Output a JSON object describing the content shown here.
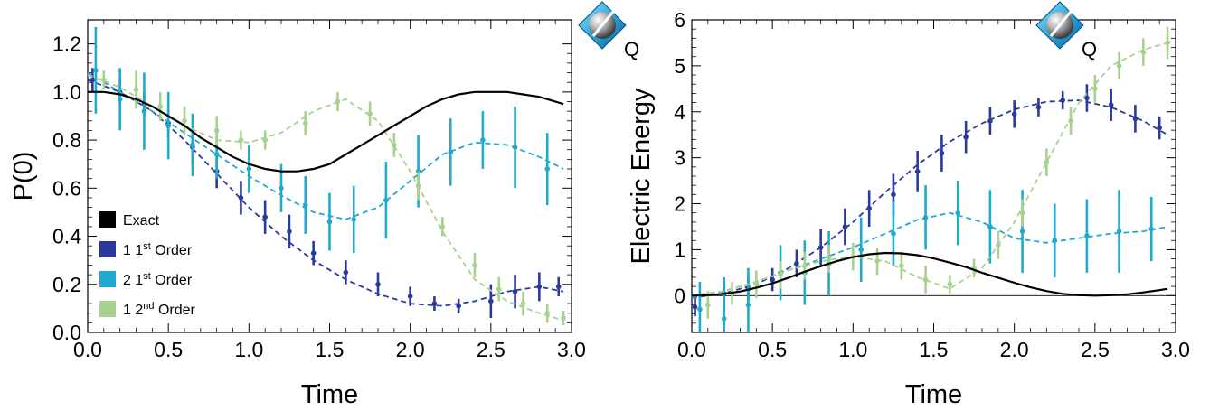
{
  "chart_data": [
    {
      "type": "line",
      "xlabel": "Time",
      "ylabel": "P(0)",
      "xlim": [
        0,
        3.0
      ],
      "ylim": [
        0,
        1.3
      ],
      "xticks": [
        "0.0",
        "0.5",
        "1.0",
        "1.5",
        "2.0",
        "2.5",
        "3.0"
      ],
      "yticks": [
        "0.0",
        "0.2",
        "0.4",
        "0.6",
        "0.8",
        "1.0",
        "1.2"
      ],
      "legend_position": "bottom-left",
      "logo_text": "Q",
      "legend": [
        {
          "label": "Exact",
          "sup": "",
          "suffix": "",
          "color": "#000000"
        },
        {
          "label": "1 1",
          "sup": "st",
          "suffix": " Order",
          "color": "#2a3a9c"
        },
        {
          "label": "2 1",
          "sup": "st",
          "suffix": " Order",
          "color": "#1fa9cf"
        },
        {
          "label": "1 2",
          "sup": "nd",
          "suffix": " Order",
          "color": "#a7d18f"
        }
      ],
      "exact_curve": {
        "color": "#000000",
        "x": [
          0.0,
          0.1,
          0.2,
          0.3,
          0.4,
          0.5,
          0.6,
          0.7,
          0.8,
          0.9,
          1.0,
          1.1,
          1.2,
          1.3,
          1.4,
          1.5,
          1.6,
          1.7,
          1.8,
          1.9,
          2.0,
          2.1,
          2.2,
          2.3,
          2.4,
          2.5,
          2.6,
          2.7,
          2.8,
          2.9,
          2.95
        ],
        "y": [
          1.0,
          1.0,
          0.99,
          0.97,
          0.94,
          0.9,
          0.86,
          0.81,
          0.77,
          0.73,
          0.7,
          0.68,
          0.67,
          0.67,
          0.68,
          0.7,
          0.74,
          0.78,
          0.82,
          0.86,
          0.9,
          0.94,
          0.97,
          0.99,
          1.0,
          1.0,
          1.0,
          0.99,
          0.98,
          0.96,
          0.95
        ]
      },
      "series": [
        {
          "color": "#2a3a9c",
          "fit": {
            "x": [
              0.0,
              0.2,
              0.4,
              0.6,
              0.8,
              1.0,
              1.2,
              1.4,
              1.6,
              1.8,
              2.0,
              2.2,
              2.4,
              2.6,
              2.8,
              2.95
            ],
            "y": [
              1.05,
              1.0,
              0.92,
              0.8,
              0.66,
              0.52,
              0.4,
              0.3,
              0.22,
              0.16,
              0.12,
              0.11,
              0.13,
              0.17,
              0.19,
              0.17
            ]
          },
          "points": {
            "x": [
              0.03,
              0.2,
              0.35,
              0.5,
              0.65,
              0.8,
              0.95,
              1.1,
              1.25,
              1.4,
              1.6,
              1.8,
              2.0,
              2.15,
              2.3,
              2.5,
              2.65,
              2.8,
              2.92
            ],
            "y": [
              1.05,
              1.0,
              0.95,
              0.87,
              0.77,
              0.67,
              0.56,
              0.48,
              0.42,
              0.33,
              0.25,
              0.2,
              0.15,
              0.12,
              0.11,
              0.13,
              0.17,
              0.19,
              0.19
            ],
            "err": [
              0.05,
              0.05,
              0.05,
              0.06,
              0.07,
              0.07,
              0.07,
              0.07,
              0.07,
              0.05,
              0.05,
              0.05,
              0.04,
              0.03,
              0.03,
              0.07,
              0.07,
              0.06,
              0.04
            ]
          }
        },
        {
          "color": "#1fa9cf",
          "fit": {
            "x": [
              0.0,
              0.2,
              0.4,
              0.6,
              0.8,
              1.0,
              1.2,
              1.4,
              1.6,
              1.8,
              2.0,
              2.2,
              2.4,
              2.6,
              2.8,
              2.95
            ],
            "y": [
              1.08,
              1.0,
              0.92,
              0.83,
              0.74,
              0.65,
              0.57,
              0.5,
              0.47,
              0.52,
              0.63,
              0.74,
              0.79,
              0.78,
              0.73,
              0.68
            ]
          },
          "points": {
            "x": [
              0.05,
              0.2,
              0.35,
              0.5,
              0.65,
              0.8,
              1.0,
              1.2,
              1.35,
              1.5,
              1.65,
              1.85,
              2.05,
              2.25,
              2.45,
              2.65,
              2.85
            ],
            "y": [
              1.09,
              0.97,
              0.92,
              0.86,
              0.78,
              0.74,
              0.68,
              0.6,
              0.53,
              0.46,
              0.47,
              0.55,
              0.67,
              0.75,
              0.8,
              0.77,
              0.68
            ],
            "err": [
              0.18,
              0.13,
              0.16,
              0.14,
              0.13,
              0.1,
              0.1,
              0.1,
              0.12,
              0.12,
              0.14,
              0.16,
              0.15,
              0.14,
              0.12,
              0.17,
              0.15
            ]
          }
        },
        {
          "color": "#a7d18f",
          "fit": {
            "x": [
              0.0,
              0.2,
              0.4,
              0.6,
              0.8,
              1.0,
              1.2,
              1.4,
              1.6,
              1.8,
              2.0,
              2.2,
              2.4,
              2.6,
              2.8,
              2.95
            ],
            "y": [
              1.07,
              1.02,
              0.94,
              0.86,
              0.8,
              0.79,
              0.83,
              0.92,
              0.97,
              0.88,
              0.67,
              0.42,
              0.22,
              0.13,
              0.08,
              0.05
            ]
          },
          "points": {
            "x": [
              0.1,
              0.3,
              0.45,
              0.6,
              0.8,
              0.95,
              1.1,
              1.35,
              1.55,
              1.75,
              1.9,
              2.05,
              2.2,
              2.4,
              2.55,
              2.7,
              2.85,
              2.95
            ],
            "y": [
              1.05,
              1.01,
              0.94,
              0.88,
              0.84,
              0.8,
              0.8,
              0.87,
              0.96,
              0.91,
              0.78,
              0.61,
              0.44,
              0.28,
              0.18,
              0.12,
              0.08,
              0.06
            ],
            "err": [
              0.04,
              0.08,
              0.06,
              0.06,
              0.06,
              0.04,
              0.04,
              0.05,
              0.04,
              0.05,
              0.05,
              0.06,
              0.04,
              0.05,
              0.05,
              0.05,
              0.04,
              0.03
            ]
          }
        }
      ]
    },
    {
      "type": "line",
      "xlabel": "Time",
      "ylabel": "Electric Energy",
      "xlim": [
        0,
        3.0
      ],
      "ylim": [
        -0.8,
        6.0
      ],
      "xticks": [
        "0.0",
        "0.5",
        "1.0",
        "1.5",
        "2.0",
        "2.5",
        "3.0"
      ],
      "yticks": [
        "0",
        "1",
        "2",
        "3",
        "4",
        "5",
        "6"
      ],
      "zero_line": true,
      "logo_text": "Q",
      "exact_curve": {
        "color": "#000000",
        "x": [
          0.0,
          0.1,
          0.2,
          0.3,
          0.4,
          0.5,
          0.6,
          0.7,
          0.8,
          0.9,
          1.0,
          1.1,
          1.2,
          1.3,
          1.4,
          1.5,
          1.6,
          1.7,
          1.8,
          1.9,
          2.0,
          2.1,
          2.2,
          2.3,
          2.4,
          2.5,
          2.6,
          2.7,
          2.8,
          2.9,
          2.95
        ],
        "y": [
          0.0,
          0.01,
          0.04,
          0.09,
          0.17,
          0.27,
          0.39,
          0.52,
          0.64,
          0.75,
          0.84,
          0.9,
          0.93,
          0.92,
          0.88,
          0.81,
          0.72,
          0.62,
          0.5,
          0.39,
          0.28,
          0.18,
          0.1,
          0.04,
          0.01,
          0.0,
          0.01,
          0.03,
          0.07,
          0.12,
          0.15
        ]
      },
      "series": [
        {
          "color": "#2a3a9c",
          "fit": {
            "x": [
              0.0,
              0.2,
              0.4,
              0.6,
              0.8,
              1.0,
              1.2,
              1.4,
              1.6,
              1.8,
              2.0,
              2.2,
              2.4,
              2.6,
              2.8,
              2.95
            ],
            "y": [
              -0.05,
              0.05,
              0.25,
              0.6,
              1.05,
              1.6,
              2.25,
              2.85,
              3.35,
              3.75,
              4.05,
              4.22,
              4.25,
              4.1,
              3.8,
              3.5
            ]
          },
          "points": {
            "x": [
              0.02,
              0.2,
              0.35,
              0.5,
              0.65,
              0.8,
              0.95,
              1.1,
              1.25,
              1.4,
              1.55,
              1.7,
              1.85,
              2.0,
              2.15,
              2.3,
              2.45,
              2.6,
              2.75,
              2.9
            ],
            "y": [
              -0.25,
              0.05,
              0.15,
              0.35,
              0.7,
              1.05,
              1.5,
              1.9,
              2.2,
              2.7,
              3.1,
              3.45,
              3.8,
              3.95,
              4.1,
              4.25,
              4.3,
              4.15,
              3.85,
              3.65
            ],
            "err": [
              0.2,
              0.2,
              0.25,
              0.25,
              0.3,
              0.4,
              0.4,
              0.4,
              0.45,
              0.45,
              0.4,
              0.35,
              0.3,
              0.3,
              0.2,
              0.2,
              0.3,
              0.35,
              0.3,
              0.25
            ]
          }
        },
        {
          "color": "#1fa9cf",
          "fit": {
            "x": [
              0.0,
              0.2,
              0.4,
              0.6,
              0.8,
              1.0,
              1.2,
              1.4,
              1.6,
              1.8,
              2.0,
              2.2,
              2.4,
              2.6,
              2.8,
              2.95
            ],
            "y": [
              -0.05,
              0.1,
              0.3,
              0.55,
              0.8,
              1.05,
              1.35,
              1.65,
              1.8,
              1.6,
              1.25,
              1.15,
              1.25,
              1.35,
              1.4,
              1.5
            ]
          },
          "points": {
            "x": [
              0.05,
              0.2,
              0.35,
              0.55,
              0.7,
              0.85,
              1.05,
              1.25,
              1.45,
              1.65,
              1.85,
              2.05,
              2.25,
              2.45,
              2.65,
              2.85
            ],
            "y": [
              -0.3,
              -0.5,
              -0.2,
              0.5,
              0.5,
              0.7,
              1.0,
              1.35,
              1.7,
              1.8,
              1.5,
              1.4,
              1.2,
              1.3,
              1.4,
              1.45
            ],
            "err": [
              0.6,
              0.9,
              0.8,
              0.6,
              0.7,
              0.7,
              0.7,
              0.7,
              0.7,
              0.7,
              0.8,
              0.9,
              0.8,
              0.8,
              0.9,
              0.7
            ]
          }
        },
        {
          "color": "#a7d18f",
          "fit": {
            "x": [
              0.0,
              0.2,
              0.4,
              0.6,
              0.8,
              1.0,
              1.2,
              1.4,
              1.6,
              1.8,
              2.0,
              2.2,
              2.4,
              2.6,
              2.8,
              2.95
            ],
            "y": [
              0.0,
              0.1,
              0.3,
              0.55,
              0.75,
              0.85,
              0.75,
              0.4,
              0.15,
              0.6,
              1.6,
              2.9,
              4.2,
              5.0,
              5.35,
              5.5
            ]
          },
          "points": {
            "x": [
              0.1,
              0.25,
              0.4,
              0.55,
              0.7,
              0.85,
              1.0,
              1.15,
              1.3,
              1.45,
              1.6,
              1.75,
              1.9,
              2.05,
              2.2,
              2.35,
              2.5,
              2.65,
              2.8,
              2.95
            ],
            "y": [
              -0.2,
              0.05,
              0.25,
              0.45,
              0.65,
              0.8,
              0.85,
              0.75,
              0.65,
              0.35,
              0.25,
              0.6,
              1.1,
              1.8,
              2.9,
              3.8,
              4.5,
              5.0,
              5.3,
              5.5
            ],
            "err": [
              0.3,
              0.25,
              0.3,
              0.3,
              0.3,
              0.3,
              0.3,
              0.3,
              0.3,
              0.3,
              0.2,
              0.2,
              0.3,
              0.3,
              0.3,
              0.3,
              0.3,
              0.3,
              0.3,
              0.35
            ]
          }
        }
      ]
    }
  ]
}
